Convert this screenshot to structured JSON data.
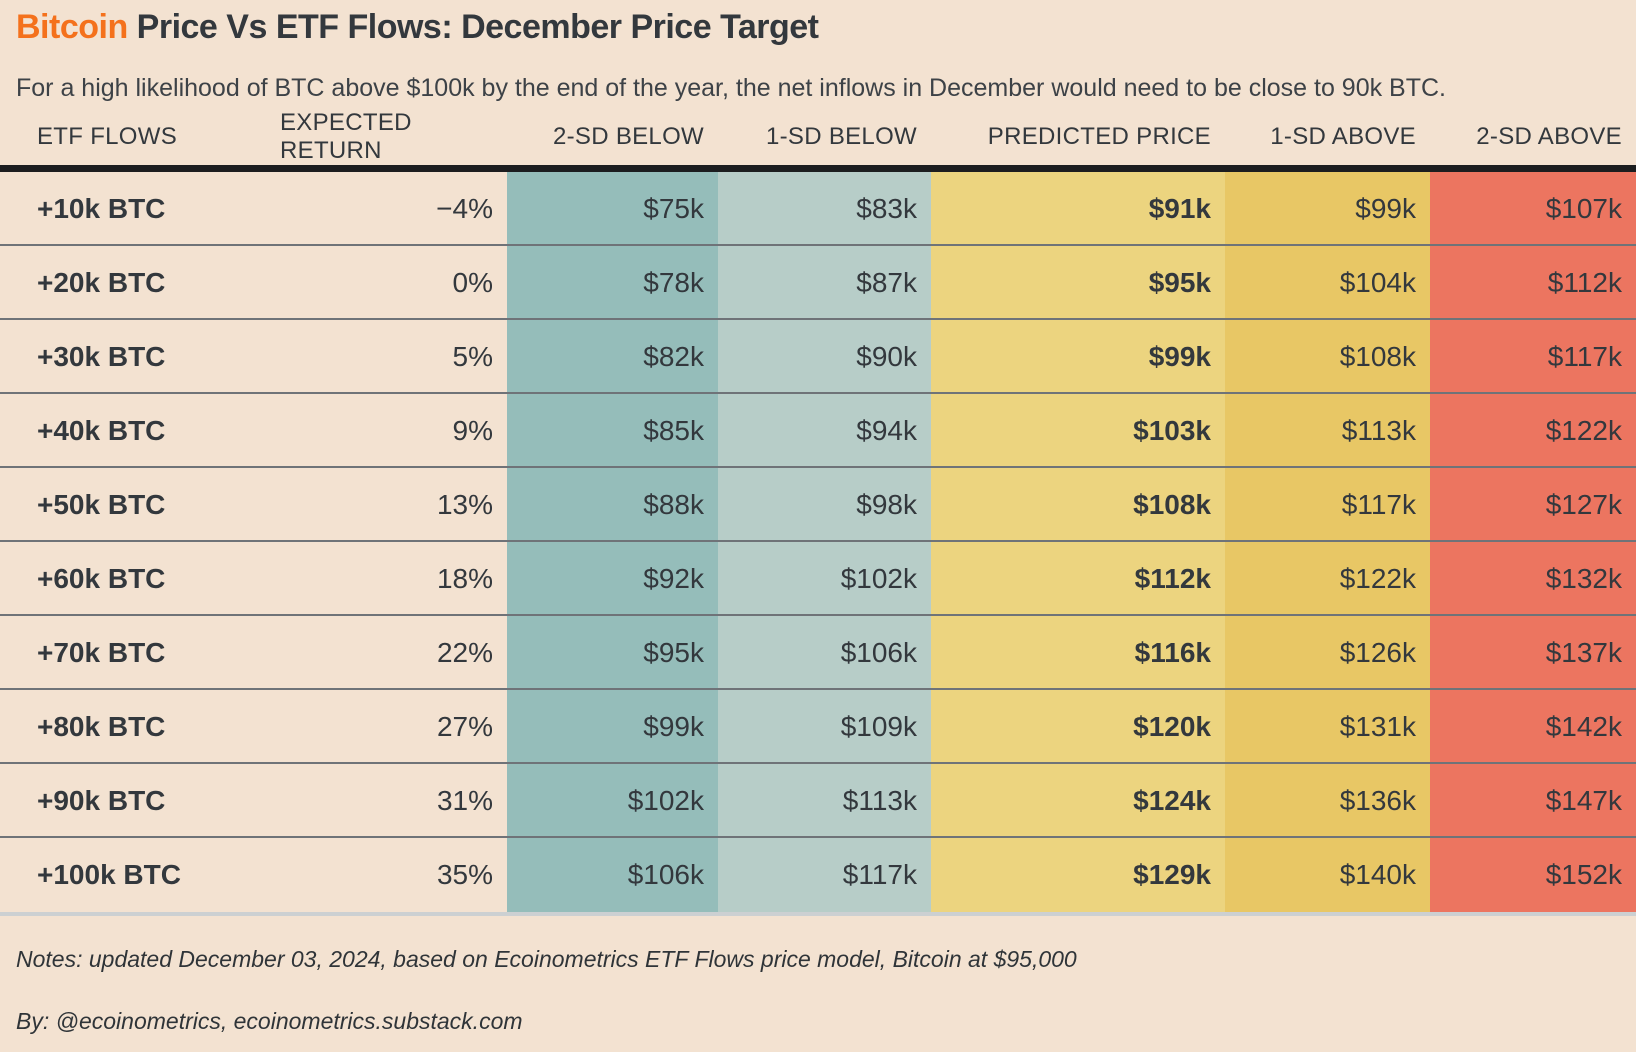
{
  "title": {
    "accent": "Bitcoin",
    "rest": " Price Vs ETF Flows: December Price Target"
  },
  "subtitle": "For a high likelihood of BTC above $100k by the end of the year, the net inflows in December would need to be close to 90k BTC.",
  "table": {
    "columns": [
      {
        "label": "ETF FLOWS"
      },
      {
        "label": "EXPECTED RETURN"
      },
      {
        "label": "2-SD BELOW"
      },
      {
        "label": "1-SD BELOW"
      },
      {
        "label": "PREDICTED PRICE"
      },
      {
        "label": "1-SD ABOVE"
      },
      {
        "label": "2-SD ABOVE"
      }
    ],
    "rows": [
      [
        "+10k BTC",
        "−4%",
        "$75k",
        "$83k",
        "$91k",
        "$99k",
        "$107k"
      ],
      [
        "+20k BTC",
        "0%",
        "$78k",
        "$87k",
        "$95k",
        "$104k",
        "$112k"
      ],
      [
        "+30k BTC",
        "5%",
        "$82k",
        "$90k",
        "$99k",
        "$108k",
        "$117k"
      ],
      [
        "+40k BTC",
        "9%",
        "$85k",
        "$94k",
        "$103k",
        "$113k",
        "$122k"
      ],
      [
        "+50k BTC",
        "13%",
        "$88k",
        "$98k",
        "$108k",
        "$117k",
        "$127k"
      ],
      [
        "+60k BTC",
        "18%",
        "$92k",
        "$102k",
        "$112k",
        "$122k",
        "$132k"
      ],
      [
        "+70k BTC",
        "22%",
        "$95k",
        "$106k",
        "$116k",
        "$126k",
        "$137k"
      ],
      [
        "+80k BTC",
        "27%",
        "$99k",
        "$109k",
        "$120k",
        "$131k",
        "$142k"
      ],
      [
        "+90k BTC",
        "31%",
        "$102k",
        "$113k",
        "$124k",
        "$136k",
        "$147k"
      ],
      [
        "+100k BTC",
        "35%",
        "$106k",
        "$117k",
        "$129k",
        "$140k",
        "$152k"
      ]
    ]
  },
  "footer": {
    "notes": "Notes: updated December 03, 2024, based on Ecoinometrics ETF Flows price model, Bitcoin at $95,000",
    "byline": "By: @ecoinometrics, ecoinometrics.substack.com"
  },
  "colors": {
    "background": "#F3E2D1",
    "accent_orange": "#F4711C",
    "ink": "#33383D",
    "header_text": "#3B4046",
    "col_2sd_below": "#95BDBA",
    "col_1sd_below": "#B7CDC8",
    "col_predicted": "#ECD47F",
    "col_1sd_above": "#E8C765",
    "col_2sd_above": "#EC7560",
    "row_divider": "#6F7378",
    "header_rule": "#1C1D1F",
    "bottom_rule": "#CCD0D2"
  },
  "chart_data": {
    "type": "table",
    "title": "Bitcoin Price Vs ETF Flows: December Price Target",
    "subtitle": "For a high likelihood of BTC above $100k by the end of the year, the net inflows in December would need to be close to 90k BTC.",
    "columns": [
      "ETF FLOWS",
      "EXPECTED RETURN",
      "2-SD BELOW",
      "1-SD BELOW",
      "PREDICTED PRICE",
      "1-SD ABOVE",
      "2-SD ABOVE"
    ],
    "etf_flows_kbtc": [
      10,
      20,
      30,
      40,
      50,
      60,
      70,
      80,
      90,
      100
    ],
    "expected_return_pct": [
      -4,
      0,
      5,
      9,
      13,
      18,
      22,
      27,
      31,
      35
    ],
    "series": [
      {
        "name": "2-SD BELOW",
        "values_kusd": [
          75,
          78,
          82,
          85,
          88,
          92,
          95,
          99,
          102,
          106
        ]
      },
      {
        "name": "1-SD BELOW",
        "values_kusd": [
          83,
          87,
          90,
          94,
          98,
          102,
          106,
          109,
          113,
          117
        ]
      },
      {
        "name": "PREDICTED PRICE",
        "values_kusd": [
          91,
          95,
          99,
          103,
          108,
          112,
          116,
          120,
          124,
          129
        ]
      },
      {
        "name": "1-SD ABOVE",
        "values_kusd": [
          99,
          104,
          108,
          113,
          117,
          122,
          126,
          131,
          136,
          140
        ]
      },
      {
        "name": "2-SD ABOVE",
        "values_kusd": [
          107,
          112,
          117,
          122,
          127,
          132,
          137,
          142,
          147,
          152
        ]
      }
    ],
    "notes": "updated December 03, 2024, based on Ecoinometrics ETF Flows price model, Bitcoin at $95,000",
    "source": "By: @ecoinometrics, ecoinometrics.substack.com"
  }
}
